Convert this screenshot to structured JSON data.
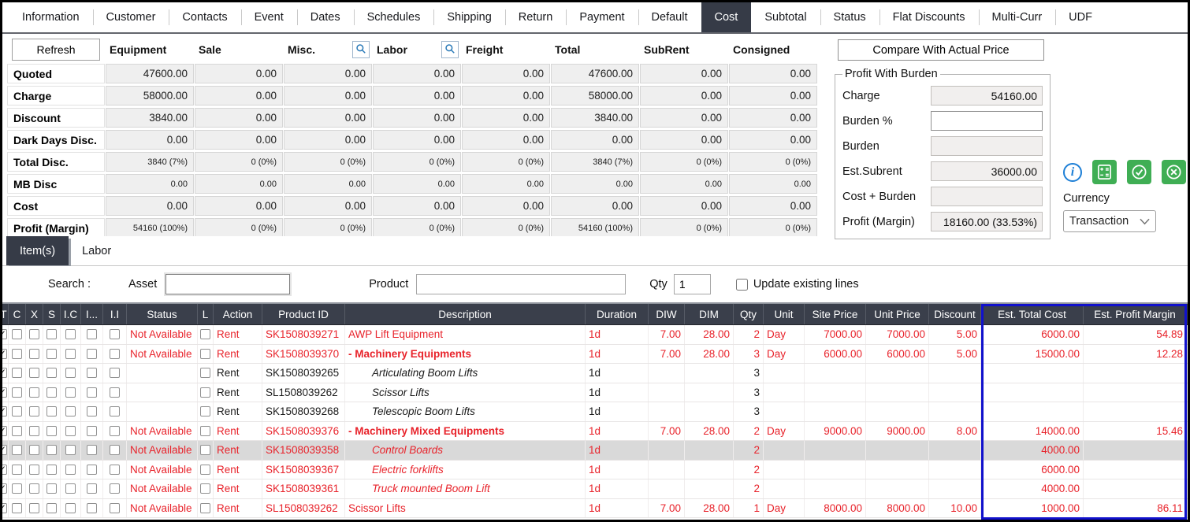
{
  "colors": {
    "active_tab_bg": "#363b47",
    "table_header_bg": "#3a3f4b",
    "negative_red": "#e8232b",
    "highlight_blue": "#1111cc",
    "icon_green": "#3fae54",
    "info_blue": "#1d7fd6",
    "selected_row_bg": "#d9d9d9"
  },
  "icons": {
    "misc_search": "search-icon",
    "labor_search": "search-icon",
    "info": "info-icon",
    "calculator": "calculator-icon",
    "approve": "check-circle-icon",
    "cancel": "x-circle-icon",
    "currency_dropdown": "chevron-down-icon"
  },
  "top_tabs": [
    {
      "label": "Information",
      "active": false
    },
    {
      "label": "Customer",
      "active": false
    },
    {
      "label": "Contacts",
      "active": false
    },
    {
      "label": "Event",
      "active": false
    },
    {
      "label": "Dates",
      "active": false
    },
    {
      "label": "Schedules",
      "active": false
    },
    {
      "label": "Shipping",
      "active": false
    },
    {
      "label": "Return",
      "active": false
    },
    {
      "label": "Payment",
      "active": false
    },
    {
      "label": "Default",
      "active": false
    },
    {
      "label": "Cost",
      "active": true
    },
    {
      "label": "Subtotal",
      "active": false
    },
    {
      "label": "Status",
      "active": false
    },
    {
      "label": "Flat Discounts",
      "active": false
    },
    {
      "label": "Multi-Curr",
      "active": false
    },
    {
      "label": "UDF",
      "active": false
    }
  ],
  "summary": {
    "refresh_label": "Refresh",
    "columns": [
      {
        "label": "Equipment",
        "has_search": false
      },
      {
        "label": "Sale",
        "has_search": false
      },
      {
        "label": "Misc.",
        "has_search": true
      },
      {
        "label": "Labor",
        "has_search": true
      },
      {
        "label": "Freight",
        "has_search": false
      },
      {
        "label": "Total",
        "has_search": false
      },
      {
        "label": "SubRent",
        "has_search": false
      },
      {
        "label": "Consigned",
        "has_search": false
      }
    ],
    "rows": [
      {
        "label": "Quoted",
        "small": false,
        "values": [
          "47600.00",
          "0.00",
          "0.00",
          "0.00",
          "0.00",
          "47600.00",
          "0.00",
          "0.00"
        ]
      },
      {
        "label": "Charge",
        "small": false,
        "values": [
          "58000.00",
          "0.00",
          "0.00",
          "0.00",
          "0.00",
          "58000.00",
          "0.00",
          "0.00"
        ]
      },
      {
        "label": "Discount",
        "small": false,
        "values": [
          "3840.00",
          "0.00",
          "0.00",
          "0.00",
          "0.00",
          "3840.00",
          "0.00",
          "0.00"
        ]
      },
      {
        "label": "Dark Days Disc.",
        "small": false,
        "values": [
          "0.00",
          "0.00",
          "0.00",
          "0.00",
          "0.00",
          "0.00",
          "0.00",
          "0.00"
        ]
      },
      {
        "label": "Total Disc.",
        "small": true,
        "values": [
          "3840 (7%)",
          "0 (0%)",
          "0 (0%)",
          "0 (0%)",
          "0 (0%)",
          "3840 (7%)",
          "0 (0%)",
          "0 (0%)"
        ]
      },
      {
        "label": "MB Disc",
        "small": true,
        "values": [
          "0.00",
          "0.00",
          "0.00",
          "0.00",
          "0.00",
          "0.00",
          "0.00",
          "0.00"
        ]
      },
      {
        "label": "Cost",
        "small": false,
        "values": [
          "0.00",
          "0.00",
          "0.00",
          "0.00",
          "0.00",
          "0.00",
          "0.00",
          "0.00"
        ]
      },
      {
        "label": "Profit (Margin)",
        "small": true,
        "values": [
          "54160 (100%)",
          "0 (0%)",
          "0 (0%)",
          "0 (0%)",
          "0 (0%)",
          "54160 (100%)",
          "0 (0%)",
          "0 (0%)"
        ]
      }
    ]
  },
  "burden": {
    "compare_button_label": "Compare With Actual Price",
    "group_title": "Profit With Burden",
    "fields": [
      {
        "label": "Charge",
        "value": "54160.00",
        "editable": false
      },
      {
        "label": "Burden %",
        "value": "",
        "editable": true
      },
      {
        "label": "Burden",
        "value": "",
        "editable": false
      },
      {
        "label": "Est.Subrent",
        "value": "36000.00",
        "editable": false
      },
      {
        "label": "Cost + Burden",
        "value": "",
        "editable": false
      },
      {
        "label": "Profit (Margin)",
        "value": "18160.00 (33.53%)",
        "editable": false
      }
    ],
    "currency_label": "Currency",
    "currency_value": "Transaction"
  },
  "subtabs": [
    {
      "label": "Item(s)",
      "active": true
    },
    {
      "label": "Labor",
      "active": false
    }
  ],
  "search": {
    "section_label": "Search :",
    "asset_label": "Asset",
    "asset_value": "",
    "product_label": "Product",
    "product_value": "",
    "qty_label": "Qty",
    "qty_value": "1",
    "update_label": "Update existing lines",
    "update_checked": false
  },
  "table": {
    "checkbox_columns": [
      "T",
      "C",
      "X",
      "S",
      "I.C",
      "I...",
      "I.I"
    ],
    "columns": [
      "Status",
      "L",
      "Action",
      "Product ID",
      "Description",
      "Duration",
      "DIW",
      "DIM",
      "Qty",
      "Unit",
      "Site Price",
      "Unit Price",
      "Discount",
      "Est. Total Cost",
      "Est. Profit Margin"
    ],
    "rows": [
      {
        "status": "Not Available",
        "action": "Rent",
        "product_id": "SK1508039271",
        "description": "AWP Lift Equipment",
        "desc_style": "plain",
        "indent": false,
        "duration": "1d",
        "diw": "7.00",
        "dim": "28.00",
        "qty": "2",
        "unit": "Day",
        "site_price": "7000.00",
        "unit_price": "7000.00",
        "discount": "5.00",
        "est_total_cost": "6000.00",
        "est_profit_margin": "54.89",
        "text_color": "red",
        "selected": false
      },
      {
        "status": "Not Available",
        "action": "Rent",
        "product_id": "SK1508039370",
        "description": "- Machinery Equipments",
        "desc_style": "bold",
        "indent": false,
        "duration": "1d",
        "diw": "7.00",
        "dim": "28.00",
        "qty": "3",
        "unit": "Day",
        "site_price": "6000.00",
        "unit_price": "6000.00",
        "discount": "5.00",
        "est_total_cost": "15000.00",
        "est_profit_margin": "12.28",
        "text_color": "red",
        "selected": false
      },
      {
        "status": "",
        "action": "Rent",
        "product_id": "SK1508039265",
        "description": "Articulating Boom Lifts",
        "desc_style": "italic",
        "indent": true,
        "duration": "1d",
        "diw": "",
        "dim": "",
        "qty": "3",
        "unit": "",
        "site_price": "",
        "unit_price": "",
        "discount": "",
        "est_total_cost": "",
        "est_profit_margin": "",
        "text_color": "black",
        "selected": false
      },
      {
        "status": "",
        "action": "Rent",
        "product_id": "SL1508039262",
        "description": "Scissor Lifts",
        "desc_style": "italic",
        "indent": true,
        "duration": "1d",
        "diw": "",
        "dim": "",
        "qty": "3",
        "unit": "",
        "site_price": "",
        "unit_price": "",
        "discount": "",
        "est_total_cost": "",
        "est_profit_margin": "",
        "text_color": "black",
        "selected": false
      },
      {
        "status": "",
        "action": "Rent",
        "product_id": "SK1508039268",
        "description": "Telescopic Boom Lifts",
        "desc_style": "italic",
        "indent": true,
        "duration": "1d",
        "diw": "",
        "dim": "",
        "qty": "3",
        "unit": "",
        "site_price": "",
        "unit_price": "",
        "discount": "",
        "est_total_cost": "",
        "est_profit_margin": "",
        "text_color": "black",
        "selected": false
      },
      {
        "status": "Not Available",
        "action": "Rent",
        "product_id": "SK1508039376",
        "description": "- Machinery Mixed Equipments",
        "desc_style": "bold",
        "indent": false,
        "duration": "1d",
        "diw": "7.00",
        "dim": "28.00",
        "qty": "2",
        "unit": "Day",
        "site_price": "9000.00",
        "unit_price": "9000.00",
        "discount": "8.00",
        "est_total_cost": "14000.00",
        "est_profit_margin": "15.46",
        "text_color": "red",
        "selected": false
      },
      {
        "status": "Not Available",
        "action": "Rent",
        "product_id": "SK1508039358",
        "description": "Control Boards",
        "desc_style": "italic",
        "indent": true,
        "duration": "1d",
        "diw": "",
        "dim": "",
        "qty": "2",
        "unit": "",
        "site_price": "",
        "unit_price": "",
        "discount": "",
        "est_total_cost": "4000.00",
        "est_profit_margin": "",
        "text_color": "red",
        "selected": true
      },
      {
        "status": "Not Available",
        "action": "Rent",
        "product_id": "SK1508039367",
        "description": "Electric forklifts",
        "desc_style": "italic",
        "indent": true,
        "duration": "1d",
        "diw": "",
        "dim": "",
        "qty": "2",
        "unit": "",
        "site_price": "",
        "unit_price": "",
        "discount": "",
        "est_total_cost": "6000.00",
        "est_profit_margin": "",
        "text_color": "red",
        "selected": false
      },
      {
        "status": "Not Available",
        "action": "Rent",
        "product_id": "SK1508039361",
        "description": "Truck mounted Boom Lift",
        "desc_style": "italic",
        "indent": true,
        "duration": "1d",
        "diw": "",
        "dim": "",
        "qty": "2",
        "unit": "",
        "site_price": "",
        "unit_price": "",
        "discount": "",
        "est_total_cost": "4000.00",
        "est_profit_margin": "",
        "text_color": "red",
        "selected": false
      },
      {
        "status": "Not Available",
        "action": "Rent",
        "product_id": "SL1508039262",
        "description": "Scissor Lifts",
        "desc_style": "plain",
        "indent": false,
        "duration": "1d",
        "diw": "7.00",
        "dim": "28.00",
        "qty": "1",
        "unit": "Day",
        "site_price": "8000.00",
        "unit_price": "8000.00",
        "discount": "10.00",
        "est_total_cost": "1000.00",
        "est_profit_margin": "86.11",
        "text_color": "red",
        "selected": false
      }
    ]
  }
}
